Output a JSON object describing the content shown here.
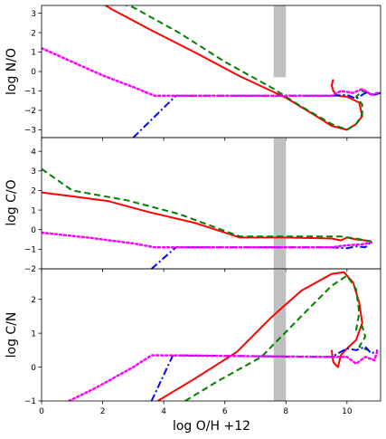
{
  "chart_data": [
    {
      "type": "line",
      "ylabel": "log N/O",
      "xlim": [
        0,
        11.1
      ],
      "ylim": [
        -3.4,
        3.4
      ],
      "yticks": [
        -3,
        -2,
        -1,
        0,
        1,
        2,
        3
      ],
      "band": {
        "x": [
          7.6,
          8.0
        ],
        "y": [
          -0.3,
          3.4
        ],
        "color": "#c0c0c0"
      },
      "series": [
        {
          "color": "#ff0000",
          "style": "solid",
          "points": [
            [
              0,
              4.0
            ],
            [
              2.0,
              3.5
            ],
            [
              2.3,
              3.2
            ],
            [
              3.5,
              2.2
            ],
            [
              5.0,
              1.0
            ],
            [
              6.5,
              -0.25
            ],
            [
              8.0,
              -1.35
            ],
            [
              9.0,
              -2.3
            ],
            [
              9.5,
              -2.8
            ],
            [
              10.0,
              -3.0
            ],
            [
              10.3,
              -2.7
            ],
            [
              10.5,
              -2.3
            ],
            [
              10.4,
              -1.6
            ],
            [
              10.0,
              -1.3
            ],
            [
              9.7,
              -1.25
            ],
            [
              9.55,
              -1.0
            ],
            [
              9.5,
              -0.7
            ],
            [
              9.55,
              -0.4
            ]
          ]
        },
        {
          "color": "#008000",
          "style": "dashed",
          "points": [
            [
              2.0,
              3.8
            ],
            [
              3.0,
              3.3
            ],
            [
              4.5,
              2.0
            ],
            [
              6.0,
              0.5
            ],
            [
              7.5,
              -0.8
            ],
            [
              8.5,
              -1.8
            ],
            [
              9.5,
              -2.7
            ],
            [
              10.0,
              -3.0
            ],
            [
              10.3,
              -2.7
            ],
            [
              10.5,
              -2.2
            ],
            [
              10.5,
              -1.7
            ],
            [
              10.3,
              -1.3
            ],
            [
              10.5,
              -1.0
            ],
            [
              10.8,
              -1.1
            ]
          ]
        },
        {
          "color": "#0000ff",
          "style": "dashdot",
          "points": [
            [
              3.0,
              -3.4
            ],
            [
              4.4,
              -1.25
            ],
            [
              9.0,
              -1.25
            ],
            [
              9.5,
              -1.25
            ],
            [
              10.0,
              -1.2
            ],
            [
              10.3,
              -1.4
            ],
            [
              10.6,
              -1.1
            ],
            [
              10.9,
              -1.2
            ],
            [
              11.1,
              -1.1
            ]
          ]
        },
        {
          "color": "#ff00ff",
          "style": "dotted",
          "points": [
            [
              0,
              1.2
            ],
            [
              1.0,
              0.5
            ],
            [
              2.0,
              -0.2
            ],
            [
              3.0,
              -0.8
            ],
            [
              3.7,
              -1.25
            ],
            [
              8.0,
              -1.25
            ],
            [
              9.5,
              -1.25
            ],
            [
              9.8,
              -1.0
            ],
            [
              10.2,
              -1.1
            ],
            [
              10.5,
              -0.9
            ],
            [
              10.8,
              -1.2
            ],
            [
              11.0,
              -1.1
            ]
          ]
        }
      ]
    },
    {
      "type": "line",
      "ylabel": "log C/O",
      "xlim": [
        0,
        11.1
      ],
      "ylim": [
        -2.0,
        4.7
      ],
      "yticks": [
        -2,
        -1,
        0,
        1,
        2,
        3,
        4
      ],
      "band": {
        "x": [
          7.6,
          8.0
        ],
        "y": [
          -2.0,
          4.7
        ],
        "color": "#c0c0c0"
      },
      "series": [
        {
          "color": "#ff0000",
          "style": "solid",
          "points": [
            [
              0,
              1.9
            ],
            [
              1.0,
              1.7
            ],
            [
              2.2,
              1.45
            ],
            [
              3.5,
              0.9
            ],
            [
              5.0,
              0.35
            ],
            [
              6.5,
              -0.4
            ],
            [
              8.0,
              -0.4
            ],
            [
              9.5,
              -0.45
            ],
            [
              9.8,
              -0.55
            ],
            [
              10.0,
              -0.4
            ],
            [
              10.3,
              -0.5
            ],
            [
              10.6,
              -0.55
            ],
            [
              10.8,
              -0.6
            ]
          ]
        },
        {
          "color": "#008000",
          "style": "dashed",
          "points": [
            [
              0,
              3.1
            ],
            [
              1.0,
              2.0
            ],
            [
              2.8,
              1.5
            ],
            [
              4.5,
              0.8
            ],
            [
              6.5,
              -0.35
            ],
            [
              9.0,
              -0.35
            ],
            [
              9.8,
              -0.35
            ],
            [
              10.3,
              -0.45
            ],
            [
              10.6,
              -0.55
            ],
            [
              10.8,
              -0.6
            ]
          ]
        },
        {
          "color": "#0000ff",
          "style": "dashdot",
          "points": [
            [
              3.6,
              -2.0
            ],
            [
              4.4,
              -0.9
            ],
            [
              9.5,
              -0.9
            ],
            [
              10.0,
              -0.95
            ],
            [
              10.3,
              -0.85
            ],
            [
              10.6,
              -0.9
            ],
            [
              10.8,
              -0.6
            ]
          ]
        },
        {
          "color": "#ff00ff",
          "style": "dotted",
          "points": [
            [
              0,
              -0.15
            ],
            [
              1.5,
              -0.4
            ],
            [
              3.0,
              -0.7
            ],
            [
              3.7,
              -0.9
            ],
            [
              9.5,
              -0.9
            ],
            [
              10.0,
              -0.8
            ],
            [
              10.5,
              -0.75
            ],
            [
              10.8,
              -0.65
            ]
          ]
        }
      ]
    },
    {
      "type": "line",
      "ylabel": "log C/N",
      "xlabel": "log O/H +12",
      "xlim": [
        0,
        11.1
      ],
      "ylim": [
        -1.0,
        2.9
      ],
      "yticks": [
        -1,
        0,
        1,
        2
      ],
      "xticks": [
        0,
        2,
        4,
        6,
        8,
        10
      ],
      "band": {
        "x": [
          7.6,
          8.0
        ],
        "y": [
          -1.0,
          2.9
        ],
        "color": "#c0c0c0"
      },
      "series": [
        {
          "color": "#ff0000",
          "style": "solid",
          "points": [
            [
              3.8,
              -1.0
            ],
            [
              5.0,
              -0.35
            ],
            [
              6.4,
              0.45
            ],
            [
              7.5,
              1.45
            ],
            [
              8.5,
              2.25
            ],
            [
              9.5,
              2.75
            ],
            [
              9.9,
              2.8
            ],
            [
              10.2,
              2.5
            ],
            [
              10.4,
              1.9
            ],
            [
              10.5,
              1.3
            ],
            [
              10.3,
              0.8
            ],
            [
              10.0,
              0.55
            ],
            [
              9.8,
              0.35
            ],
            [
              9.7,
              0.0
            ],
            [
              9.55,
              0.15
            ],
            [
              9.5,
              0.5
            ]
          ]
        },
        {
          "color": "#008000",
          "style": "dashed",
          "points": [
            [
              4.7,
              -1.0
            ],
            [
              5.8,
              -0.4
            ],
            [
              7.2,
              0.3
            ],
            [
              8.5,
              1.5
            ],
            [
              9.5,
              2.4
            ],
            [
              10.0,
              2.7
            ],
            [
              10.3,
              2.3
            ],
            [
              10.4,
              1.6
            ],
            [
              10.3,
              1.1
            ],
            [
              10.5,
              1.2
            ],
            [
              10.6,
              0.9
            ],
            [
              10.4,
              0.6
            ],
            [
              10.7,
              0.5
            ]
          ]
        },
        {
          "color": "#0000ff",
          "style": "dashdot",
          "points": [
            [
              3.6,
              -1.0
            ],
            [
              4.3,
              0.35
            ],
            [
              9.0,
              0.3
            ],
            [
              9.5,
              0.3
            ],
            [
              10.0,
              0.55
            ],
            [
              10.3,
              0.5
            ],
            [
              10.6,
              0.6
            ],
            [
              10.8,
              0.4
            ],
            [
              11.0,
              0.5
            ]
          ]
        },
        {
          "color": "#ff00ff",
          "style": "dotted",
          "points": [
            [
              0.9,
              -1.0
            ],
            [
              1.8,
              -0.6
            ],
            [
              3.0,
              0.0
            ],
            [
              3.6,
              0.35
            ],
            [
              9.5,
              0.3
            ],
            [
              10.0,
              0.3
            ],
            [
              10.3,
              0.1
            ],
            [
              10.6,
              0.3
            ],
            [
              10.9,
              0.2
            ],
            [
              11.0,
              0.5
            ]
          ]
        }
      ]
    }
  ]
}
